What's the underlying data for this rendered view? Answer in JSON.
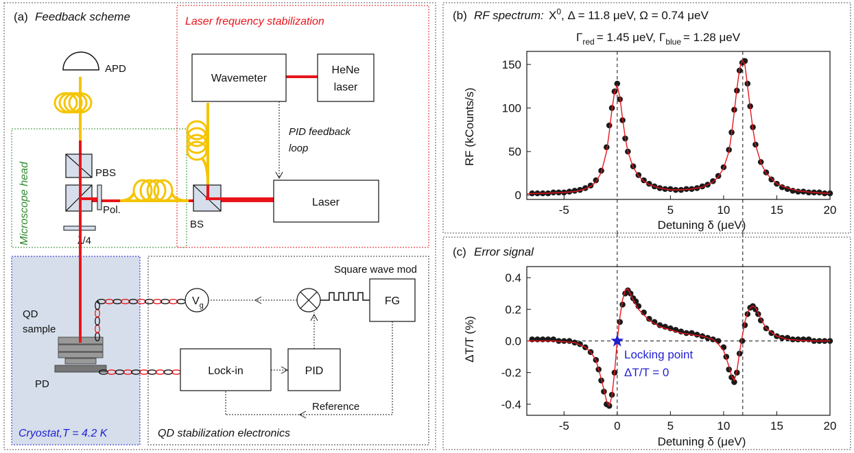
{
  "colors": {
    "laser": "#e8141a",
    "fiber": "#f5c400",
    "green": "#2e8b2e",
    "blue": "#1f1fd2",
    "red_text": "#e8141a",
    "cryostat_fill": "#d5deea",
    "fit": "#e8141a",
    "marker": "#1a1a1a"
  },
  "panel_a": {
    "label": "(a)",
    "title": "Feedback scheme",
    "laser_box_title": "Laser frequency stabilization",
    "microscope_title": "Microscope head",
    "cryostat_title": "Cryostat,T = 4.2 K",
    "electronics_title": "QD stabilization electronics",
    "apd": "APD",
    "pbs": "PBS",
    "pol": "Pol.",
    "qwp": "λ/4",
    "bs": "BS",
    "wavemeter": "Wavemeter",
    "hene_line1": "HeNe",
    "hene_line2": "laser",
    "pid_loop_line1": "PID feedback",
    "pid_loop_line2": "loop",
    "laser": "Laser",
    "qd_line1": "QD",
    "qd_line2": "sample",
    "pd": "PD",
    "vg_main": "V",
    "vg_sub": "g",
    "square_wave": "Square wave mod",
    "fg": "FG",
    "lockin": "Lock-in",
    "pid": "PID",
    "reference": "Reference"
  },
  "panel_b": {
    "label": "(b)",
    "title_italic": "RF spectrum:",
    "title_line1_rest": "Δ = 11.8 μeV, Ω = 0.74 μeV",
    "title_x": "X",
    "title_x_sup": "0",
    "gamma": "Γ",
    "red_sub": "red",
    "red_val": "= 1.45 μeV,",
    "blue_sub": "blue",
    "blue_val": "= 1.28 μeV",
    "xlabel": "Detuning δ (μeV)",
    "ylabel": "RF (kCounts/s)"
  },
  "panel_c": {
    "label": "(c)",
    "title": "Error signal",
    "xlabel": "Detuning δ (μeV)",
    "ylabel": "ΔT/T (%)",
    "annot_line1": "Locking point",
    "annot_line2": "ΔT/T = 0"
  },
  "chart_data": [
    {
      "type": "scatter",
      "title": "RF spectrum",
      "xlabel": "Detuning δ (μeV)",
      "ylabel": "RF (kCounts/s)",
      "xlim": [
        -8.5,
        20
      ],
      "ylim": [
        -5,
        165
      ],
      "xticks": [
        -5,
        5,
        10,
        15,
        20
      ],
      "yticks": [
        0,
        50,
        100,
        150
      ],
      "vlines": [
        0,
        11.8
      ],
      "series": [
        {
          "kind": "points",
          "x": [
            -8,
            -7.5,
            -7,
            -6.5,
            -6,
            -5.5,
            -5,
            -4.5,
            -4,
            -3.5,
            -3,
            -2.5,
            -2,
            -1.5,
            -1,
            -0.75,
            -0.5,
            -0.25,
            0,
            0.25,
            0.5,
            0.75,
            1,
            1.5,
            2,
            2.5,
            3,
            3.5,
            4,
            4.5,
            5,
            5.5,
            6,
            6.5,
            7,
            7.5,
            8,
            8.5,
            9,
            9.5,
            10,
            10.5,
            10.75,
            11,
            11.25,
            11.5,
            11.75,
            12,
            12.25,
            12.5,
            12.75,
            13,
            13.5,
            14,
            14.5,
            15,
            15.5,
            16,
            16.5,
            17,
            17.5,
            18,
            18.5,
            19,
            19.5,
            20
          ],
          "y": [
            2,
            2,
            2,
            2,
            3,
            3,
            3,
            4,
            5,
            6,
            8,
            11,
            17,
            28,
            55,
            80,
            100,
            119,
            128,
            110,
            86,
            65,
            50,
            33,
            23,
            17,
            13,
            10,
            8,
            7,
            7,
            6,
            6,
            7,
            7,
            8,
            10,
            12,
            16,
            22,
            32,
            52,
            72,
            98,
            120,
            143,
            152,
            154,
            128,
            102,
            78,
            58,
            38,
            26,
            18,
            13,
            9,
            7,
            5,
            4,
            4,
            3,
            3,
            3,
            2,
            2
          ]
        },
        {
          "kind": "fit",
          "x": [
            -8.5,
            -7,
            -6,
            -5,
            -4,
            -3,
            -2.5,
            -2,
            -1.5,
            -1,
            -0.75,
            -0.5,
            -0.25,
            0,
            0.25,
            0.5,
            0.75,
            1,
            1.5,
            2,
            2.5,
            3,
            4,
            5,
            6,
            7,
            8,
            9,
            9.5,
            10,
            10.5,
            10.75,
            11,
            11.25,
            11.5,
            11.75,
            12,
            12.25,
            12.5,
            12.75,
            13,
            13.5,
            14,
            15,
            16,
            17,
            18,
            19,
            20
          ],
          "y": [
            1.5,
            2,
            2.5,
            3,
            4,
            7,
            10,
            15,
            26,
            50,
            72,
            98,
            118,
            126,
            112,
            88,
            66,
            50,
            32,
            22,
            16,
            12,
            8,
            6,
            6,
            7,
            9,
            15,
            21,
            31,
            50,
            70,
            95,
            122,
            145,
            155,
            150,
            125,
            100,
            76,
            58,
            37,
            25,
            13,
            8,
            5,
            3.5,
            2.5,
            2
          ]
        }
      ]
    },
    {
      "type": "scatter",
      "title": "Error signal",
      "xlabel": "Detuning δ (μeV)",
      "ylabel": "ΔT/T (%)",
      "xlim": [
        -8.5,
        20
      ],
      "ylim": [
        -0.47,
        0.47
      ],
      "xticks": [
        -5,
        0,
        5,
        10,
        15,
        20
      ],
      "yticks": [
        -0.4,
        -0.2,
        0.0,
        0.2,
        0.4
      ],
      "vlines": [
        0,
        11.8
      ],
      "hlines": [
        0
      ],
      "locking_point": [
        0,
        0
      ],
      "series": [
        {
          "kind": "points",
          "x": [
            -8,
            -7.5,
            -7,
            -6.5,
            -6,
            -5.5,
            -5,
            -4.5,
            -4,
            -3.5,
            -3,
            -2.5,
            -2,
            -1.75,
            -1.5,
            -1.25,
            -1,
            -0.75,
            -0.5,
            -0.25,
            0,
            0.25,
            0.5,
            0.75,
            1,
            1.25,
            1.5,
            1.75,
            2,
            2.5,
            3,
            3.5,
            4,
            4.5,
            5,
            5.5,
            6,
            6.5,
            7,
            7.5,
            8,
            8.5,
            9,
            9.5,
            10,
            10.25,
            10.5,
            10.75,
            11,
            11.25,
            11.5,
            11.75,
            12,
            12.25,
            12.5,
            12.75,
            13,
            13.25,
            13.5,
            14,
            14.5,
            15,
            15.5,
            16,
            16.5,
            17,
            17.5,
            18,
            18.5,
            19,
            19.5,
            20
          ],
          "y": [
            0.01,
            0.01,
            0.01,
            0.01,
            0.01,
            0.0,
            0.0,
            0.0,
            -0.01,
            -0.02,
            -0.04,
            -0.07,
            -0.12,
            -0.18,
            -0.25,
            -0.32,
            -0.4,
            -0.41,
            -0.34,
            -0.2,
            0.0,
            0.12,
            0.23,
            0.3,
            0.32,
            0.3,
            0.27,
            0.25,
            0.22,
            0.18,
            0.14,
            0.12,
            0.1,
            0.09,
            0.08,
            0.07,
            0.06,
            0.05,
            0.05,
            0.04,
            0.03,
            0.02,
            0.01,
            0.0,
            -0.04,
            -0.1,
            -0.18,
            -0.23,
            -0.26,
            -0.2,
            -0.08,
            0.0,
            0.1,
            0.17,
            0.21,
            0.22,
            0.2,
            0.17,
            0.13,
            0.08,
            0.05,
            0.03,
            0.02,
            0.02,
            0.01,
            0.01,
            0.01,
            0.01,
            0.0,
            0.0,
            0.0,
            0.0
          ]
        },
        {
          "kind": "fit",
          "x": [
            -8.5,
            -6,
            -4,
            -3,
            -2.5,
            -2,
            -1.5,
            -1,
            -0.75,
            -0.5,
            -0.25,
            0,
            0.25,
            0.5,
            0.75,
            1,
            1.5,
            2,
            3,
            4,
            5,
            6,
            7,
            8,
            9,
            9.5,
            10,
            10.5,
            10.75,
            11,
            11.25,
            11.5,
            11.75,
            12,
            12.25,
            12.5,
            12.75,
            13,
            13.5,
            14,
            15,
            16,
            18,
            20
          ],
          "y": [
            0.0,
            0.0,
            -0.01,
            -0.04,
            -0.07,
            -0.12,
            -0.24,
            -0.38,
            -0.41,
            -0.35,
            -0.2,
            0.0,
            0.15,
            0.26,
            0.32,
            0.33,
            0.26,
            0.2,
            0.13,
            0.09,
            0.07,
            0.05,
            0.04,
            0.03,
            0.01,
            -0.02,
            -0.06,
            -0.16,
            -0.22,
            -0.25,
            -0.19,
            -0.07,
            0.03,
            0.12,
            0.18,
            0.21,
            0.22,
            0.21,
            0.14,
            0.08,
            0.03,
            0.01,
            0.0,
            0.0
          ]
        }
      ]
    }
  ]
}
